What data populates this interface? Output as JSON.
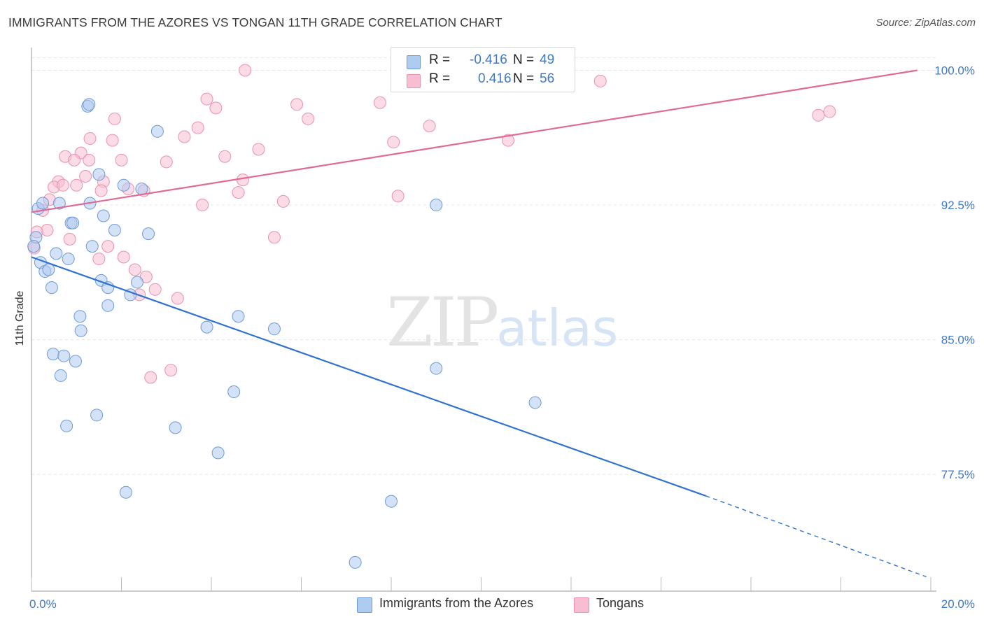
{
  "header": {
    "title": "IMMIGRANTS FROM THE AZORES VS TONGAN 11TH GRADE CORRELATION CHART",
    "source": "Source: ZipAtlas.com"
  },
  "watermark": {
    "zip": "ZIP",
    "atlas": "atlas"
  },
  "legend": {
    "rows": [
      {
        "r_label": "R =",
        "r_value": "-0.416",
        "n_label": "N =",
        "n_value": "49"
      },
      {
        "r_label": "R =",
        "r_value": "0.416",
        "n_label": "N =",
        "n_value": "56"
      }
    ]
  },
  "bottom_legend": {
    "azores": "Immigrants from the Azores",
    "tongans": "Tongans"
  },
  "colors": {
    "azores_fill": "#aecbf0",
    "azores_stroke": "#6d9ad6",
    "azores_line": "#2f72d0",
    "tongan_fill": "#f7bdd0",
    "tongan_stroke": "#e991ae",
    "tongan_line": "#e06a93",
    "grid": "#e6e6e6",
    "tick_text": "#3f78c8"
  },
  "chart_data": {
    "type": "scatter",
    "title": "IMMIGRANTS FROM THE AZORES VS TONGAN 11TH GRADE CORRELATION CHART",
    "xlabel": "",
    "ylabel": "11th Grade",
    "xlim": [
      0,
      20
    ],
    "ylim": [
      71,
      101.5
    ],
    "x_tick_labels": [
      {
        "value": 0,
        "label": "0.0%"
      },
      {
        "value": 20,
        "label": "20.0%"
      }
    ],
    "y_tick_labels": [
      {
        "value": 100,
        "label": "100.0%"
      },
      {
        "value": 92.5,
        "label": "92.5%"
      },
      {
        "value": 85,
        "label": "85.0%"
      },
      {
        "value": 77.5,
        "label": "77.5%"
      }
    ],
    "grid": true,
    "legend_position": "top-center",
    "series": [
      {
        "name": "Immigrants from the Azores",
        "r": -0.416,
        "n": 49,
        "trend": {
          "x0": 0,
          "y0": 89.6,
          "x1": 15.0,
          "y1": 76.3,
          "dash_to_x": 19.9,
          "dash_to_y": 71.8
        },
        "points": [
          [
            1.25,
            98.0
          ],
          [
            1.28,
            98.1
          ],
          [
            2.8,
            96.6
          ],
          [
            1.5,
            94.2
          ],
          [
            2.05,
            93.6
          ],
          [
            2.45,
            93.4
          ],
          [
            0.15,
            92.3
          ],
          [
            0.25,
            92.6
          ],
          [
            0.62,
            92.6
          ],
          [
            1.3,
            92.6
          ],
          [
            9.0,
            92.5
          ],
          [
            1.6,
            91.9
          ],
          [
            0.88,
            91.5
          ],
          [
            0.92,
            91.5
          ],
          [
            1.85,
            91.1
          ],
          [
            2.6,
            90.9
          ],
          [
            0.1,
            90.7
          ],
          [
            0.05,
            90.2
          ],
          [
            1.35,
            90.2
          ],
          [
            0.55,
            89.8
          ],
          [
            0.82,
            89.5
          ],
          [
            0.2,
            89.3
          ],
          [
            0.3,
            88.8
          ],
          [
            0.38,
            88.9
          ],
          [
            1.55,
            88.3
          ],
          [
            2.35,
            88.2
          ],
          [
            0.45,
            87.9
          ],
          [
            1.7,
            87.9
          ],
          [
            2.2,
            87.5
          ],
          [
            1.7,
            86.9
          ],
          [
            1.08,
            86.3
          ],
          [
            4.6,
            86.3
          ],
          [
            1.1,
            85.5
          ],
          [
            3.9,
            85.7
          ],
          [
            5.4,
            85.6
          ],
          [
            0.48,
            84.2
          ],
          [
            0.72,
            84.1
          ],
          [
            0.98,
            83.8
          ],
          [
            9.0,
            83.4
          ],
          [
            0.65,
            83.0
          ],
          [
            4.5,
            82.1
          ],
          [
            11.2,
            81.5
          ],
          [
            1.45,
            80.8
          ],
          [
            0.78,
            80.2
          ],
          [
            3.2,
            80.1
          ],
          [
            4.15,
            78.7
          ],
          [
            2.1,
            76.5
          ],
          [
            8.0,
            76.0
          ],
          [
            7.2,
            72.6
          ]
        ]
      },
      {
        "name": "Tongans",
        "r": 0.416,
        "n": 56,
        "trend": {
          "x0": 0,
          "y0": 92.1,
          "x1": 19.7,
          "y1": 100.0
        },
        "points": [
          [
            4.75,
            100.0
          ],
          [
            12.65,
            99.4
          ],
          [
            3.9,
            98.4
          ],
          [
            4.1,
            97.9
          ],
          [
            5.9,
            98.1
          ],
          [
            7.75,
            98.2
          ],
          [
            17.5,
            97.5
          ],
          [
            17.75,
            97.7
          ],
          [
            1.85,
            97.3
          ],
          [
            6.15,
            97.3
          ],
          [
            8.85,
            96.9
          ],
          [
            3.7,
            96.8
          ],
          [
            3.4,
            96.3
          ],
          [
            1.8,
            96.1
          ],
          [
            1.3,
            96.2
          ],
          [
            8.05,
            96.0
          ],
          [
            10.6,
            96.1
          ],
          [
            5.05,
            95.6
          ],
          [
            1.1,
            95.4
          ],
          [
            0.75,
            95.2
          ],
          [
            0.95,
            95.0
          ],
          [
            1.28,
            95.0
          ],
          [
            2.0,
            95.0
          ],
          [
            4.3,
            95.2
          ],
          [
            3.0,
            94.9
          ],
          [
            1.2,
            94.1
          ],
          [
            4.7,
            93.9
          ],
          [
            1.6,
            93.8
          ],
          [
            0.6,
            93.8
          ],
          [
            0.5,
            93.5
          ],
          [
            0.7,
            93.6
          ],
          [
            1.0,
            93.6
          ],
          [
            2.5,
            93.3
          ],
          [
            2.15,
            93.4
          ],
          [
            4.6,
            93.2
          ],
          [
            1.55,
            93.3
          ],
          [
            8.15,
            93.0
          ],
          [
            0.4,
            92.8
          ],
          [
            5.6,
            92.7
          ],
          [
            3.8,
            92.5
          ],
          [
            0.25,
            92.2
          ],
          [
            0.35,
            91.1
          ],
          [
            0.12,
            91.0
          ],
          [
            5.4,
            90.7
          ],
          [
            0.85,
            90.6
          ],
          [
            1.7,
            90.2
          ],
          [
            2.05,
            89.6
          ],
          [
            1.5,
            89.5
          ],
          [
            0.06,
            90.1
          ],
          [
            2.3,
            88.9
          ],
          [
            2.55,
            88.5
          ],
          [
            2.75,
            87.8
          ],
          [
            2.4,
            87.5
          ],
          [
            3.25,
            87.3
          ],
          [
            2.65,
            82.9
          ],
          [
            3.1,
            83.3
          ]
        ]
      }
    ]
  }
}
